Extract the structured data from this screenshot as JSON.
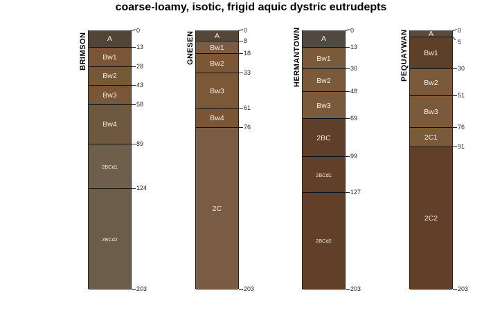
{
  "title": "coarse-loamy, isotic, frigid aquic dystric eutrudepts",
  "max_depth": 203,
  "profiles": [
    {
      "name": "BRIMSON",
      "horizons": [
        {
          "name": "A",
          "top": 0,
          "bottom": 13,
          "color": "#524538"
        },
        {
          "name": "Bw1",
          "top": 13,
          "bottom": 28,
          "color": "#7a5637"
        },
        {
          "name": "Bw2",
          "top": 28,
          "bottom": 43,
          "color": "#735a35"
        },
        {
          "name": "Bw3",
          "top": 43,
          "bottom": 58,
          "color": "#7a5637"
        },
        {
          "name": "Bw4",
          "top": 58,
          "bottom": 89,
          "color": "#6e5940"
        },
        {
          "name": "2BCd1",
          "top": 89,
          "bottom": 124,
          "color": "#6e5f4d"
        },
        {
          "name": "2BCd2",
          "top": 124,
          "bottom": 203,
          "color": "#6c5c4a"
        }
      ]
    },
    {
      "name": "GNESEN",
      "horizons": [
        {
          "name": "A",
          "top": 0,
          "bottom": 8,
          "color": "#544638"
        },
        {
          "name": "Bw1",
          "top": 8,
          "bottom": 18,
          "color": "#7a5c45"
        },
        {
          "name": "Bw2",
          "top": 18,
          "bottom": 33,
          "color": "#7b5736"
        },
        {
          "name": "Bw3",
          "top": 33,
          "bottom": 61,
          "color": "#7b5838"
        },
        {
          "name": "Bw4",
          "top": 61,
          "bottom": 76,
          "color": "#7a5637"
        },
        {
          "name": "2C",
          "top": 76,
          "bottom": 203,
          "color": "#7a5c45"
        }
      ]
    },
    {
      "name": "HERMANTOWN",
      "horizons": [
        {
          "name": "A",
          "top": 0,
          "bottom": 13,
          "color": "#524a42"
        },
        {
          "name": "Bw1",
          "top": 13,
          "bottom": 30,
          "color": "#7b5a3b"
        },
        {
          "name": "Bw2",
          "top": 30,
          "bottom": 48,
          "color": "#7b5a3b"
        },
        {
          "name": "Bw3",
          "top": 48,
          "bottom": 69,
          "color": "#7b5a3b"
        },
        {
          "name": "2BC",
          "top": 69,
          "bottom": 99,
          "color": "#5f3f2a"
        },
        {
          "name": "2BCd1",
          "top": 99,
          "bottom": 127,
          "color": "#613f28"
        },
        {
          "name": "2BCd2",
          "top": 127,
          "bottom": 203,
          "color": "#613f28"
        }
      ]
    },
    {
      "name": "PEQUAYWAN",
      "horizons": [
        {
          "name": "A",
          "top": 0,
          "bottom": 5,
          "color": "#574a3e"
        },
        {
          "name": "Bw1",
          "top": 5,
          "bottom": 30,
          "color": "#5e4029"
        },
        {
          "name": "Bw2",
          "top": 30,
          "bottom": 51,
          "color": "#7b5a3b"
        },
        {
          "name": "Bw3",
          "top": 51,
          "bottom": 76,
          "color": "#7b5a3b"
        },
        {
          "name": "2C1",
          "top": 76,
          "bottom": 91,
          "color": "#7b5a3b"
        },
        {
          "name": "2C2",
          "top": 91,
          "bottom": 203,
          "color": "#613f28"
        }
      ]
    }
  ]
}
